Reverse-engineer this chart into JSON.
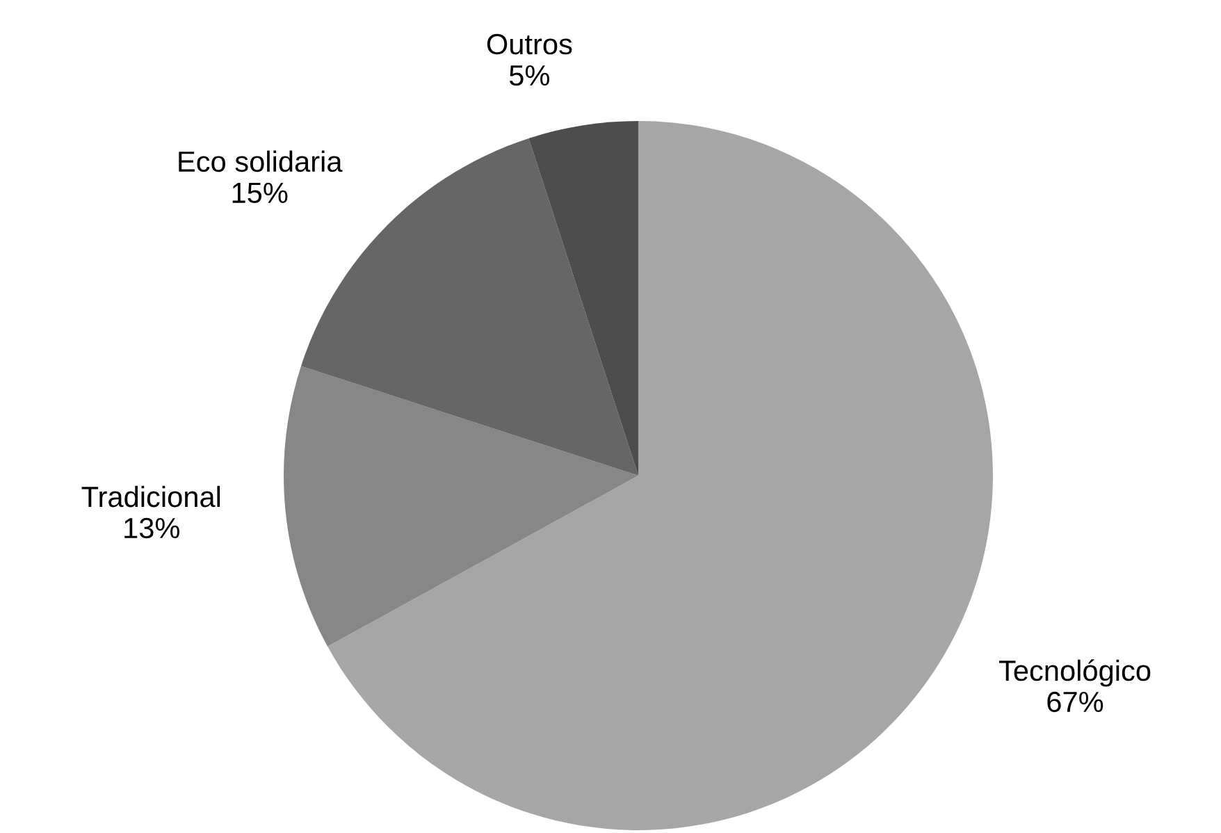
{
  "chart_data": {
    "type": "pie",
    "categories": [
      "Tecnológico",
      "Tradicional",
      "Eco solidaria",
      "Outros"
    ],
    "values": [
      67,
      13,
      15,
      5
    ],
    "value_labels": [
      "67%",
      "13%",
      "15%",
      "5%"
    ],
    "colors": [
      "#a6a6a6",
      "#878787",
      "#666666",
      "#4d4d4d"
    ]
  }
}
